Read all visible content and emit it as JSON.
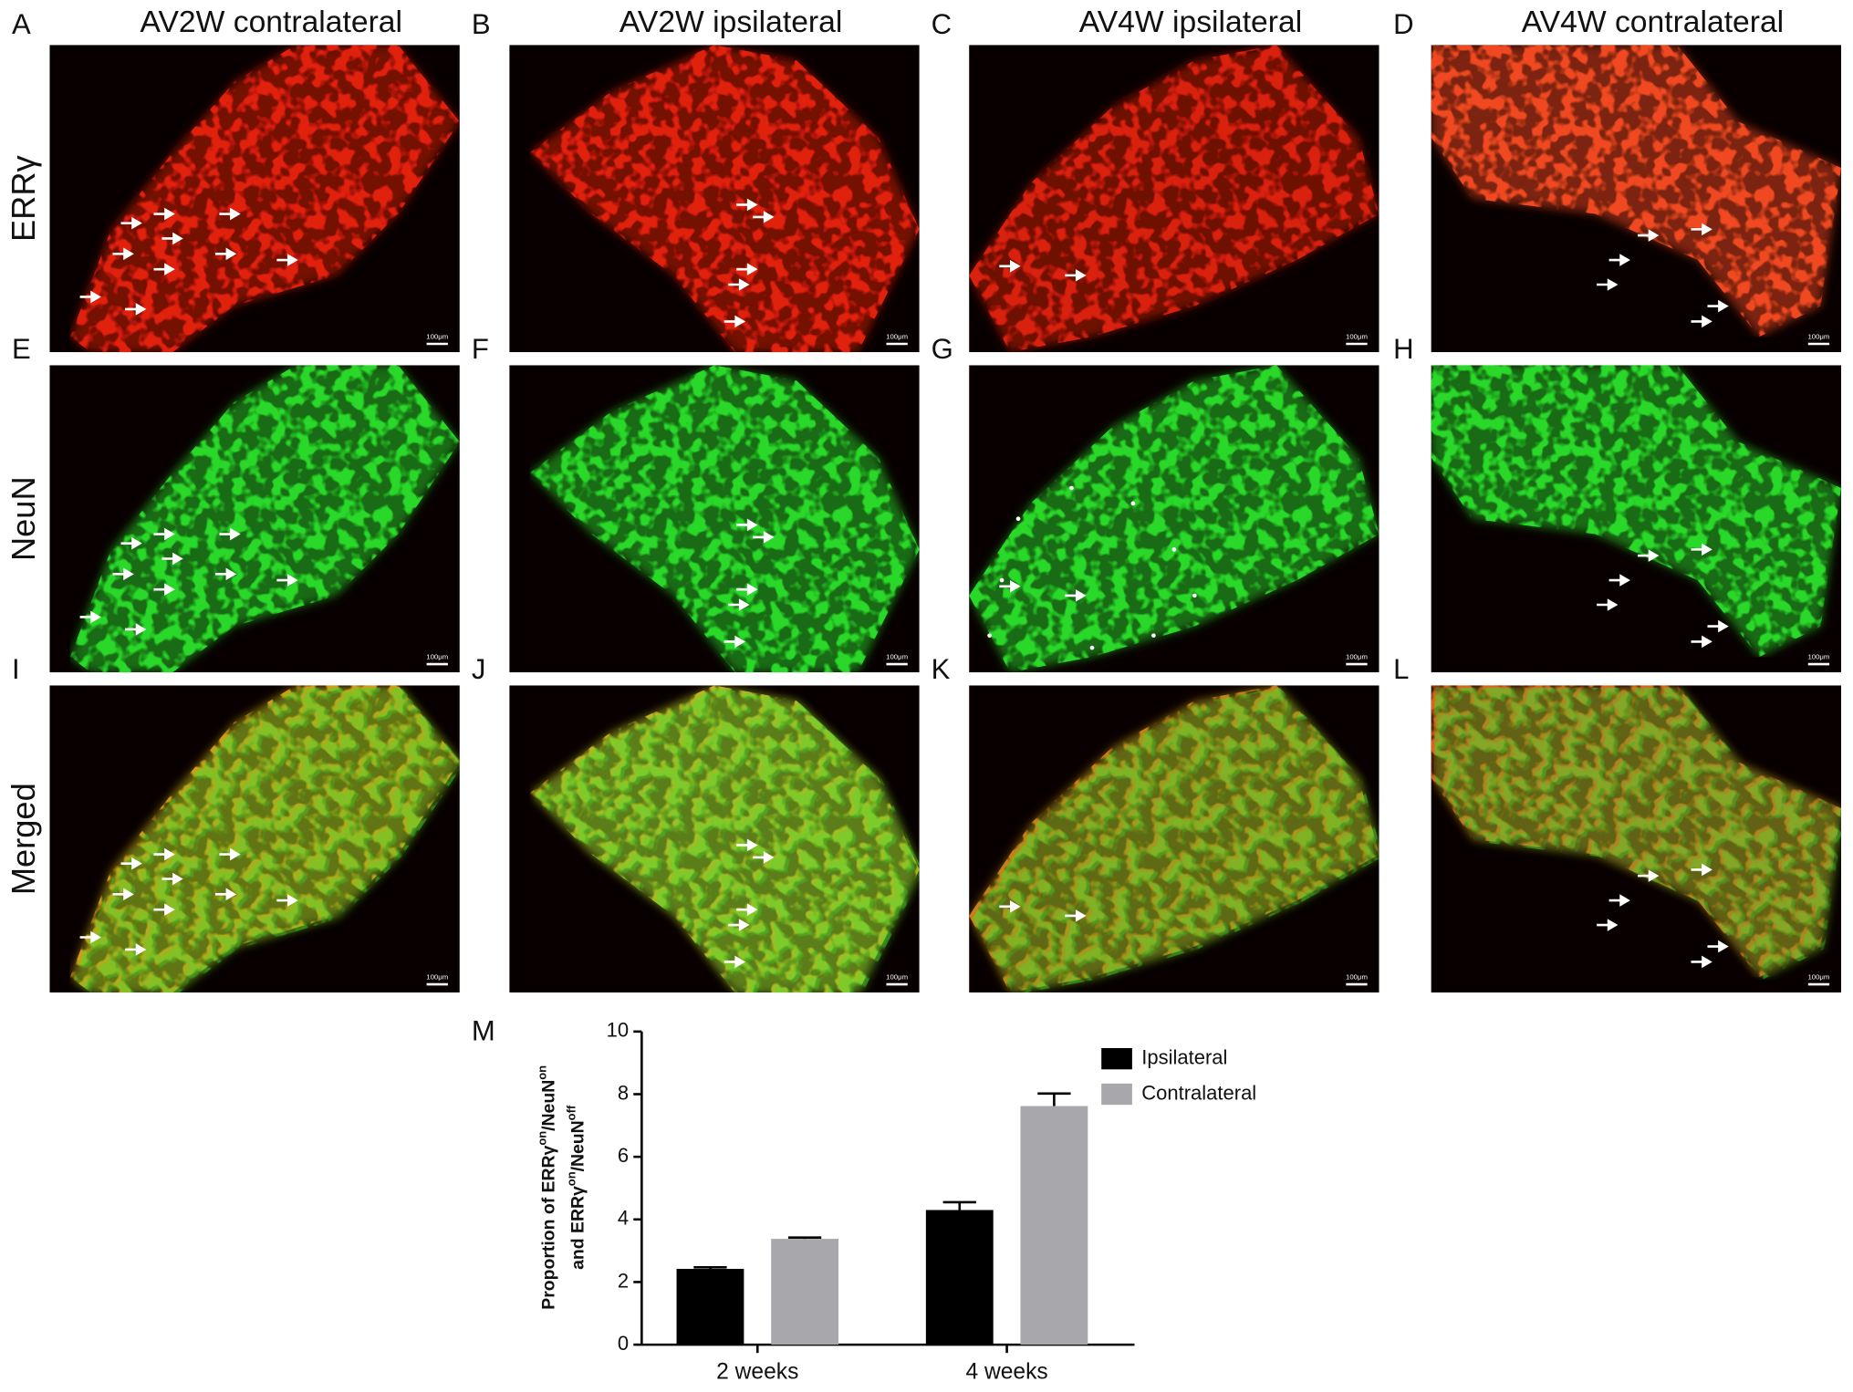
{
  "columns": [
    "AV2W contralateral",
    "AV2W ipsilateral",
    "AV4W ipsilateral",
    "AV4W contralateral"
  ],
  "rows": [
    "ERRγ",
    "NeuN",
    "Merged"
  ],
  "panels": [
    {
      "label": "A",
      "scale_bar": "100μm"
    },
    {
      "label": "B",
      "scale_bar": "100μm"
    },
    {
      "label": "C",
      "scale_bar": "100μm"
    },
    {
      "label": "D",
      "scale_bar": "100μm"
    },
    {
      "label": "E",
      "scale_bar": "100μm"
    },
    {
      "label": "F",
      "scale_bar": "100μm"
    },
    {
      "label": "G",
      "scale_bar": "100μm"
    },
    {
      "label": "H",
      "scale_bar": "100μm"
    },
    {
      "label": "I",
      "scale_bar": "100μm"
    },
    {
      "label": "J",
      "scale_bar": "100μm"
    },
    {
      "label": "K",
      "scale_bar": "100μm"
    },
    {
      "label": "L",
      "scale_bar": "100μm"
    }
  ],
  "chart_data": {
    "type": "bar",
    "panel_label": "M",
    "ylabel_1": [
      "Proportion of ERRγ",
      "on",
      "/NeuN",
      "on"
    ],
    "ylabel_2": [
      "and ERRγ",
      "on",
      "/NeuN",
      "off"
    ],
    "categories": [
      "2 weeks",
      "4 weeks"
    ],
    "series": [
      {
        "name": "Ipsilateral",
        "color": "#000000",
        "values": [
          2.42,
          4.3
        ],
        "errors": [
          0.05,
          0.25
        ]
      },
      {
        "name": "Contralateral",
        "color": "#a7a7ac",
        "values": [
          3.38,
          7.62
        ],
        "errors": [
          0.04,
          0.4
        ]
      }
    ],
    "ylim": [
      0,
      10
    ],
    "yticks": [
      0,
      2,
      4,
      6,
      8,
      10
    ],
    "legend": "upper right"
  }
}
